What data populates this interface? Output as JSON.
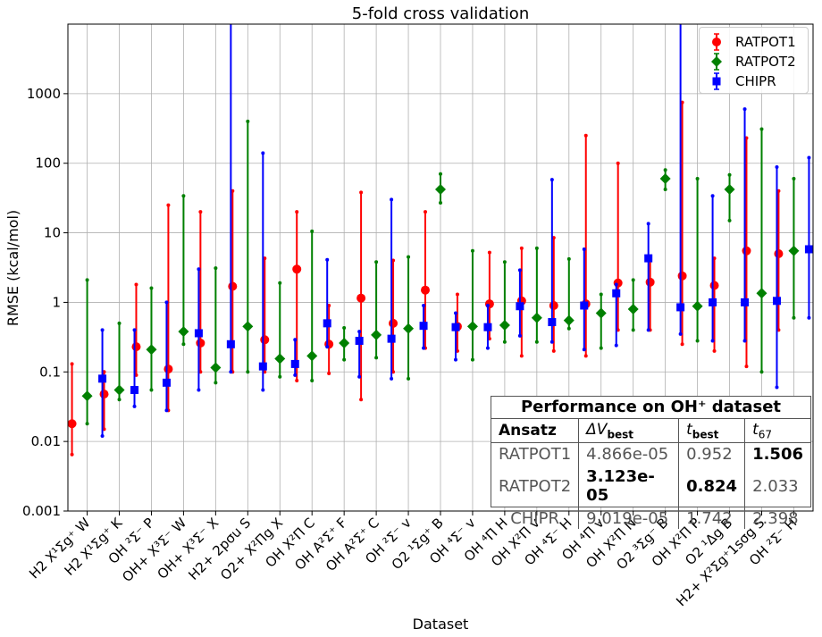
{
  "chart_data": {
    "type": "scatter",
    "title": "5-fold cross validation",
    "xlabel": "Dataset",
    "ylabel": "RMSE (kcal/mol)",
    "yscale": "log",
    "ylim": [
      0.001,
      10000
    ],
    "yticks": [
      "0.001",
      "0.01",
      "0.1",
      "1",
      "10",
      "100",
      "1000"
    ],
    "grid": true,
    "legend_position": "top-right",
    "categories": [
      "H2 X¹Σg⁺ W",
      "H2 X¹Σg⁺ K",
      "OH ²Σ⁻ P",
      "OH+ X³Σ⁻ W",
      "OH+ X³Σ⁻ X",
      "H2+ 2pσu S",
      "O2+ X²Πg X",
      "OH X²Π C",
      "OH A²Σ⁺ F",
      "OH A²Σ⁺ C",
      "OH ²Σ⁻ v",
      "O2 ¹Σg⁺ B",
      "OH ⁴Σ⁻ v",
      "OH ⁴Π H",
      "OH X²Π v",
      "OH ⁴Σ⁻ H",
      "OH ⁴Π v",
      "OH X²Π N",
      "O2 ³Σg⁻ B",
      "OH X²Π P",
      "O2 ¹Δg B",
      "H2+ X²Σg⁺1sσg S",
      "OH ²Σ⁻ H"
    ],
    "series": [
      {
        "name": "RATPOT1",
        "color": "#ff0000",
        "marker": "circle",
        "values": [
          0.018,
          0.048,
          0.23,
          0.11,
          0.26,
          1.7,
          0.29,
          3.0,
          0.25,
          1.15,
          0.5,
          1.5,
          0.45,
          0.95,
          1.05,
          0.9,
          0.95,
          1.9,
          1.95,
          2.4,
          1.75,
          5.5,
          5.0
        ],
        "lower": [
          0.0065,
          0.015,
          0.09,
          0.028,
          0.1,
          0.1,
          0.1,
          0.075,
          0.095,
          0.04,
          0.1,
          0.22,
          0.2,
          0.3,
          0.17,
          0.2,
          0.17,
          0.4,
          0.4,
          0.25,
          0.2,
          0.12,
          0.4
        ],
        "upper": [
          0.13,
          0.1,
          1.8,
          25,
          20,
          40,
          4.3,
          20,
          0.9,
          38,
          4.0,
          20,
          1.3,
          5.2,
          6.0,
          8.5,
          250,
          100,
          4.6,
          750,
          4.3,
          230,
          40
        ]
      },
      {
        "name": "RATPOT2",
        "color": "#008000",
        "marker": "diamond",
        "values": [
          0.045,
          0.055,
          0.21,
          0.38,
          0.115,
          0.45,
          0.155,
          0.17,
          0.26,
          0.34,
          0.42,
          42,
          0.45,
          0.47,
          0.6,
          0.55,
          0.7,
          0.8,
          60,
          0.88,
          42,
          1.35,
          5.5
        ],
        "lower": [
          0.018,
          0.04,
          0.055,
          0.25,
          0.07,
          0.1,
          0.085,
          0.075,
          0.15,
          0.16,
          0.08,
          27,
          0.15,
          0.27,
          0.27,
          0.42,
          0.22,
          0.4,
          42,
          0.28,
          15,
          0.1,
          0.6
        ],
        "upper": [
          2.1,
          0.5,
          1.6,
          34,
          3.1,
          400,
          1.9,
          10.5,
          0.43,
          3.8,
          4.5,
          70,
          5.5,
          3.8,
          6.0,
          4.2,
          1.3,
          2.1,
          80,
          60,
          68,
          310,
          60
        ]
      },
      {
        "name": "CHIPR",
        "color": "#0000ff",
        "marker": "square",
        "values": [
          0.08,
          0.055,
          0.07,
          0.36,
          0.25,
          0.12,
          0.13,
          0.5,
          0.28,
          0.3,
          0.46,
          0.44,
          0.44,
          0.88,
          0.52,
          0.9,
          1.35,
          4.3,
          0.85,
          1.0,
          1.0,
          1.05,
          5.8
        ],
        "lower": [
          0.012,
          0.032,
          0.028,
          0.055,
          0.1,
          0.055,
          0.09,
          0.23,
          0.085,
          0.08,
          0.22,
          0.15,
          0.22,
          0.33,
          0.27,
          0.21,
          0.24,
          0.4,
          0.35,
          0.28,
          0.28,
          0.06,
          0.6
        ],
        "upper": [
          0.4,
          0.4,
          1.0,
          3.0,
          10000,
          140,
          0.29,
          4.1,
          0.38,
          30,
          0.9,
          0.7,
          0.9,
          2.9,
          58,
          5.8,
          1.8,
          13.5,
          10000,
          34,
          600,
          88,
          120
        ]
      }
    ]
  },
  "table": {
    "title": "Performance on OH⁺ dataset",
    "headers": [
      "Ansatz",
      "ΔV",
      "best",
      "t",
      "best",
      "t",
      "67"
    ],
    "rows": [
      {
        "name": "RATPOT1",
        "dv": "4.866e-05",
        "tbest": "0.952",
        "t67": "1.506"
      },
      {
        "name": "RATPOT2",
        "dv": "3.123e-05",
        "tbest": "0.824",
        "t67": "2.033"
      },
      {
        "name": "CHIPR",
        "dv": "9.019e-05",
        "tbest": "1.742",
        "t67": "2.398"
      }
    ]
  }
}
